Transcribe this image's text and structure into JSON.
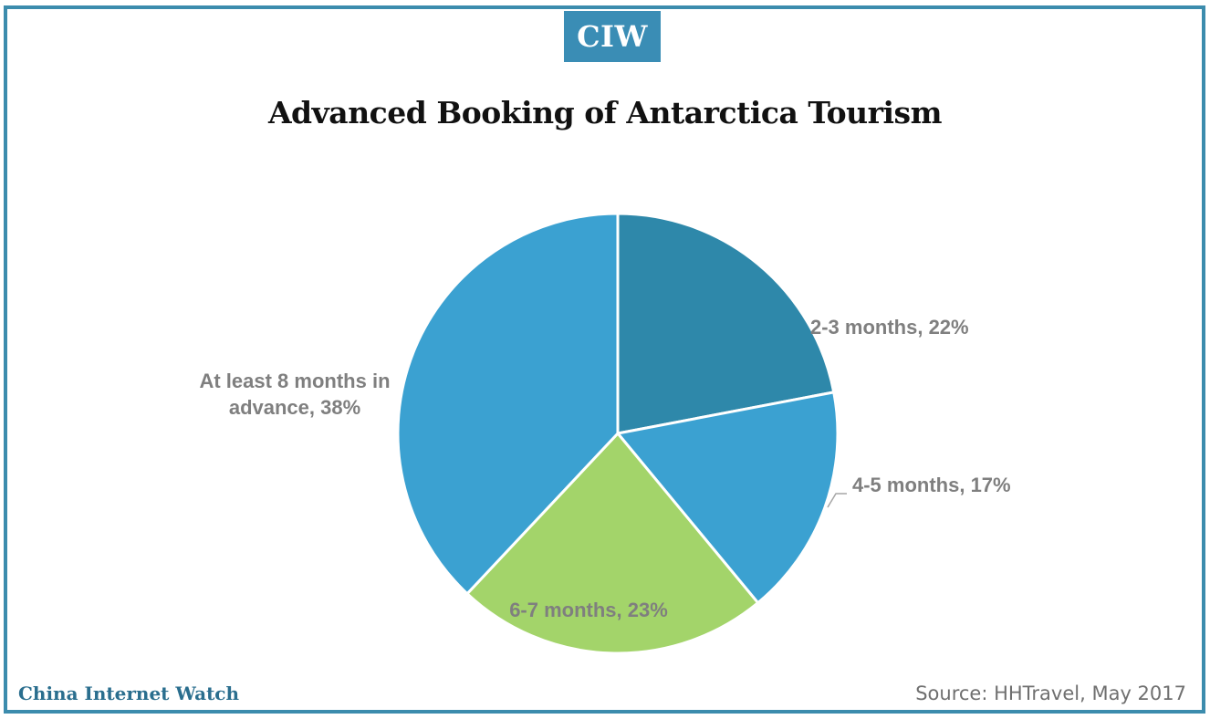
{
  "brand_badge": "CIW",
  "footer": {
    "brand": "China Internet Watch",
    "source": "Source: HHTravel, May 2017"
  },
  "colors": {
    "frame": "#3c8cad",
    "badge": "#3a8db5",
    "footer_brand": "#2a6e8e"
  },
  "chart_data": {
    "type": "pie",
    "title": "Advanced Booking of Antarctica Tourism",
    "categories": [
      "2-3 months",
      "4-5 months",
      "6-7 months",
      "At least 8 months in advance"
    ],
    "values": [
      22,
      17,
      23,
      38
    ],
    "unit": "%",
    "colors": [
      "#2e88aa",
      "#3ba1d1",
      "#a3d46a",
      "#3ba1d1"
    ],
    "data_labels": [
      [
        "2-3 months, 22%"
      ],
      [
        "4-5 months, 17%"
      ],
      [
        "6-7 months, 23%"
      ],
      [
        "At least 8 months in",
        "advance, 38%"
      ]
    ]
  }
}
